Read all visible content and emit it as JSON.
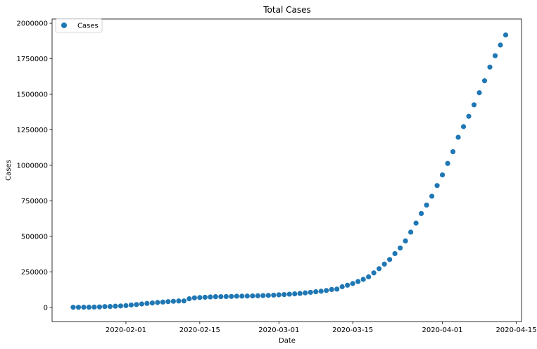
{
  "chart_data": {
    "type": "scatter",
    "title": "Total Cases",
    "xlabel": "Date",
    "ylabel": "Cases",
    "xlim": [
      "2020-01-18",
      "2020-04-16"
    ],
    "ylim": [
      -100000,
      2030000
    ],
    "grid": false,
    "legend": "top-left",
    "x_ticks": [
      "2020-02-01",
      "2020-02-15",
      "2020-03-01",
      "2020-03-15",
      "2020-04-01",
      "2020-04-15"
    ],
    "y_ticks": [
      0,
      250000,
      500000,
      750000,
      1000000,
      1250000,
      1500000,
      1750000,
      2000000
    ],
    "series": [
      {
        "name": "Cases",
        "color": "#1f77b4",
        "points": [
          [
            "2020-01-22",
            555
          ],
          [
            "2020-01-23",
            654
          ],
          [
            "2020-01-24",
            941
          ],
          [
            "2020-01-25",
            1434
          ],
          [
            "2020-01-26",
            2118
          ],
          [
            "2020-01-27",
            2927
          ],
          [
            "2020-01-28",
            5578
          ],
          [
            "2020-01-29",
            6166
          ],
          [
            "2020-01-30",
            8234
          ],
          [
            "2020-01-31",
            9927
          ],
          [
            "2020-02-01",
            12038
          ],
          [
            "2020-02-02",
            16787
          ],
          [
            "2020-02-03",
            19881
          ],
          [
            "2020-02-04",
            23892
          ],
          [
            "2020-02-05",
            27635
          ],
          [
            "2020-02-06",
            30794
          ],
          [
            "2020-02-07",
            34391
          ],
          [
            "2020-02-08",
            37120
          ],
          [
            "2020-02-09",
            40150
          ],
          [
            "2020-02-10",
            42762
          ],
          [
            "2020-02-11",
            44802
          ],
          [
            "2020-02-12",
            45221
          ],
          [
            "2020-02-13",
            60368
          ],
          [
            "2020-02-14",
            66885
          ],
          [
            "2020-02-15",
            69030
          ],
          [
            "2020-02-16",
            71224
          ],
          [
            "2020-02-17",
            73258
          ],
          [
            "2020-02-18",
            75136
          ],
          [
            "2020-02-19",
            75639
          ],
          [
            "2020-02-20",
            76197
          ],
          [
            "2020-02-21",
            76819
          ],
          [
            "2020-02-22",
            78572
          ],
          [
            "2020-02-23",
            78958
          ],
          [
            "2020-02-24",
            79561
          ],
          [
            "2020-02-25",
            80406
          ],
          [
            "2020-02-26",
            81388
          ],
          [
            "2020-02-27",
            82746
          ],
          [
            "2020-02-28",
            84112
          ],
          [
            "2020-02-29",
            86011
          ],
          [
            "2020-03-01",
            88369
          ],
          [
            "2020-03-02",
            90306
          ],
          [
            "2020-03-03",
            92840
          ],
          [
            "2020-03-04",
            95120
          ],
          [
            "2020-03-05",
            97886
          ],
          [
            "2020-03-06",
            101801
          ],
          [
            "2020-03-07",
            105847
          ],
          [
            "2020-03-08",
            109821
          ],
          [
            "2020-03-09",
            113590
          ],
          [
            "2020-03-10",
            118620
          ],
          [
            "2020-03-11",
            125875
          ],
          [
            "2020-03-12",
            128352
          ],
          [
            "2020-03-13",
            145205
          ],
          [
            "2020-03-14",
            156101
          ],
          [
            "2020-03-15",
            167454
          ],
          [
            "2020-03-16",
            181574
          ],
          [
            "2020-03-17",
            197102
          ],
          [
            "2020-03-18",
            214821
          ],
          [
            "2020-03-19",
            242570
          ],
          [
            "2020-03-20",
            272208
          ],
          [
            "2020-03-21",
            304507
          ],
          [
            "2020-03-22",
            336953
          ],
          [
            "2020-03-23",
            378235
          ],
          [
            "2020-03-24",
            418045
          ],
          [
            "2020-03-25",
            467653
          ],
          [
            "2020-03-26",
            529591
          ],
          [
            "2020-03-27",
            593291
          ],
          [
            "2020-03-28",
            660693
          ],
          [
            "2020-03-29",
            720117
          ],
          [
            "2020-03-30",
            782365
          ],
          [
            "2020-03-31",
            857487
          ],
          [
            "2020-04-01",
            932605
          ],
          [
            "2020-04-02",
            1013157
          ],
          [
            "2020-04-03",
            1095917
          ],
          [
            "2020-04-04",
            1197405
          ],
          [
            "2020-04-05",
            1272115
          ],
          [
            "2020-04-06",
            1345101
          ],
          [
            "2020-04-07",
            1426096
          ],
          [
            "2020-04-08",
            1511104
          ],
          [
            "2020-04-09",
            1595350
          ],
          [
            "2020-04-10",
            1691719
          ],
          [
            "2020-04-11",
            1771514
          ],
          [
            "2020-04-12",
            1846680
          ],
          [
            "2020-04-13",
            1917320
          ]
        ]
      }
    ]
  }
}
